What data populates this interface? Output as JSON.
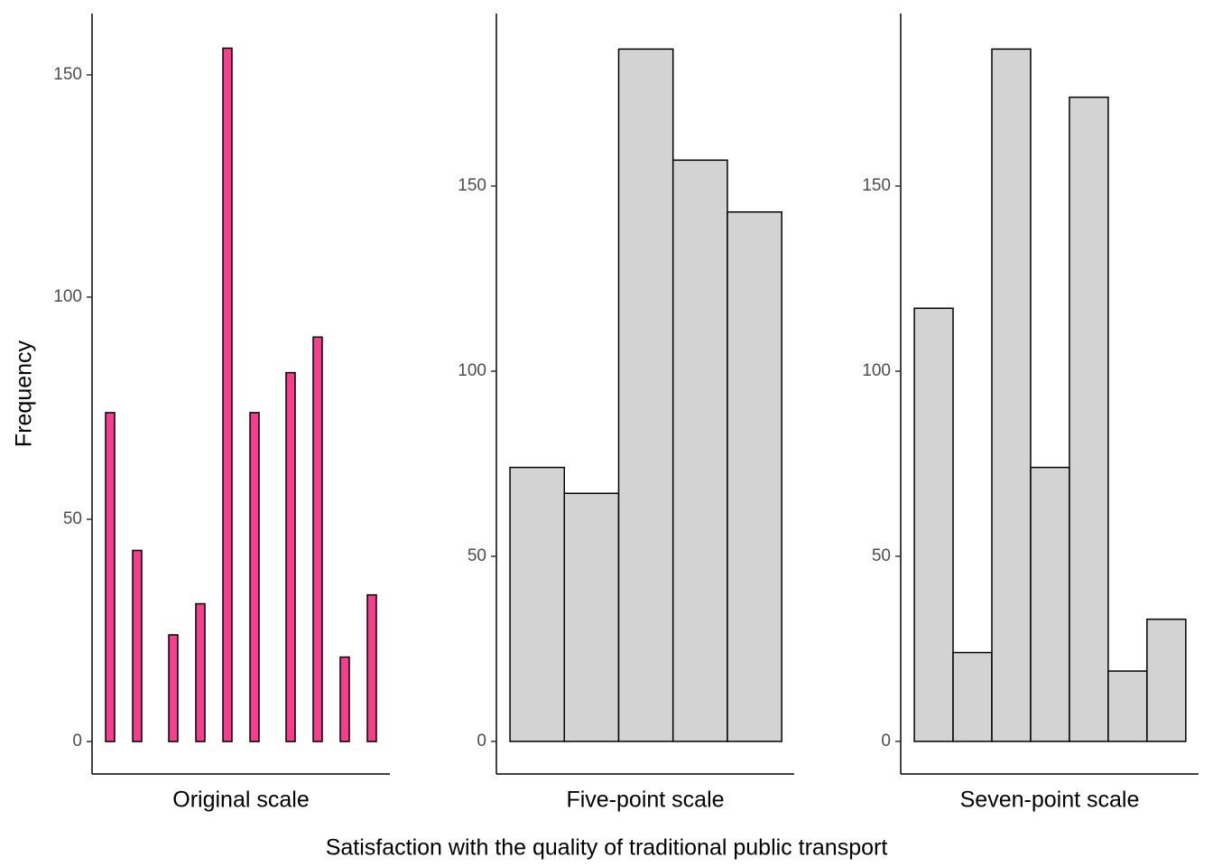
{
  "xlabel": "Satisfaction with the quality of traditional public transport",
  "ylabel": "Frequency",
  "chart_data": [
    {
      "type": "bar",
      "xlabel": "Original scale",
      "color": "#f33f8c",
      "x": [
        0,
        3,
        7,
        10,
        13,
        16,
        20,
        23,
        26,
        29
      ],
      "values": [
        74,
        43,
        24,
        31,
        156,
        74,
        83,
        91,
        19,
        33
      ],
      "xlim": [
        -2,
        31
      ],
      "ylim": [
        -7.3,
        163.8
      ],
      "yticks": [
        0,
        50,
        100,
        150
      ]
    },
    {
      "type": "histogram",
      "xlabel": "Five-point scale",
      "color": "#d3d3d3",
      "bins": [
        0.5,
        1.5,
        2.5,
        3.5,
        4.5,
        5.5
      ],
      "values": [
        74,
        67,
        187,
        157,
        143
      ],
      "xlim": [
        0.25,
        5.73
      ],
      "ylim": [
        -8.8,
        196.6
      ],
      "yticks": [
        0,
        50,
        100,
        150
      ]
    },
    {
      "type": "histogram",
      "xlabel": "Seven-point scale",
      "color": "#d3d3d3",
      "bins": [
        0.5,
        1.5,
        2.5,
        3.5,
        4.5,
        5.5,
        6.5,
        7.5
      ],
      "values": [
        117,
        24,
        187,
        74,
        174,
        19,
        33
      ],
      "xlim": [
        0.15,
        7.83
      ],
      "ylim": [
        -8.8,
        196.6
      ],
      "yticks": [
        0,
        50,
        100,
        150
      ]
    }
  ]
}
